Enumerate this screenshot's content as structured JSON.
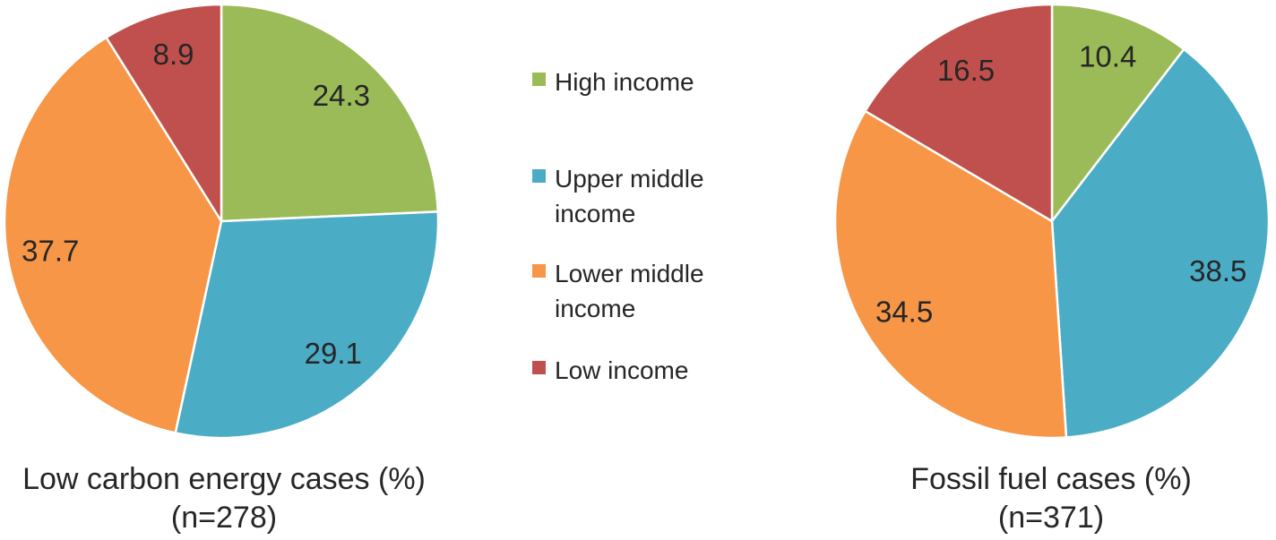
{
  "figure": {
    "background": "#ffffff",
    "text_color": "#262626"
  },
  "legend": {
    "items": [
      {
        "label": "High income",
        "color": "#9bbb59"
      },
      {
        "label": "Upper middle income",
        "color": "#4bacc6"
      },
      {
        "label": "Lower middle income",
        "color": "#f79646"
      },
      {
        "label": "Low income",
        "color": "#c0504d"
      }
    ]
  },
  "chart_data": [
    {
      "type": "pie",
      "title": "Low carbon energy cases (%)",
      "subtitle": "(n=278)",
      "n": 278,
      "categories": [
        "High income",
        "Upper middle income",
        "Lower middle income",
        "Low income"
      ],
      "values": [
        24.3,
        29.1,
        37.7,
        8.9
      ],
      "colors": [
        "#9bbb59",
        "#4bacc6",
        "#f79646",
        "#c0504d"
      ],
      "start_angle_deg": 0,
      "direction": "clockwise",
      "label_radius_fraction": 0.8,
      "slice_border_color": "#ffffff",
      "legend_position": "between-charts"
    },
    {
      "type": "pie",
      "title": "Fossil fuel cases (%)",
      "subtitle": "(n=371)",
      "n": 371,
      "categories": [
        "High income",
        "Upper middle income",
        "Lower middle income",
        "Low income"
      ],
      "values": [
        10.4,
        38.5,
        34.5,
        16.5
      ],
      "colors": [
        "#9bbb59",
        "#4bacc6",
        "#f79646",
        "#c0504d"
      ],
      "start_angle_deg": 0,
      "direction": "clockwise",
      "label_radius_fraction": 0.8,
      "slice_border_color": "#ffffff",
      "legend_position": "between-charts"
    }
  ]
}
